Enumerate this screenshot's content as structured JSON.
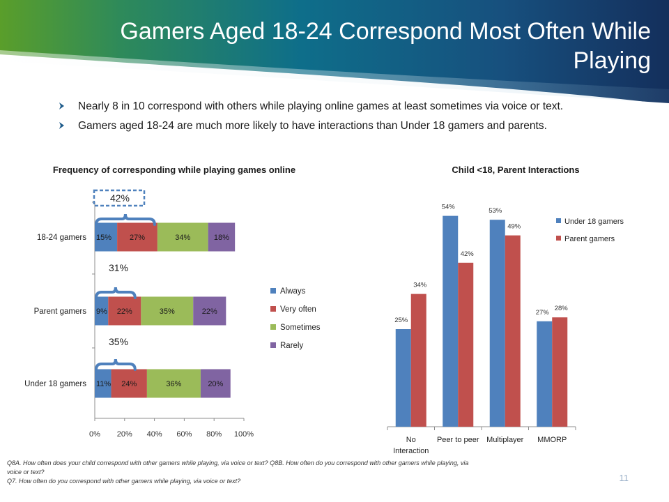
{
  "slide": {
    "title": "Gamers Aged 18-24 Correspond Most Often While Playing",
    "bullets": [
      "Nearly 8 in 10 correspond with others while playing online games at least sometimes via voice or text.",
      "Gamers aged 18-24 are much more likely to have interactions than Under 18 gamers and parents."
    ],
    "footnote": [
      "Q8A. How often does your child correspond with other gamers while playing, via voice or text? Q8B. How often do you correspond with other gamers while playing, via voice or text?",
      "Q7.  How often do you correspond with other gamers while playing, via voice or text?"
    ],
    "page_number": "11"
  },
  "colors": {
    "blue": "#4f81bd",
    "red": "#c0504d",
    "green": "#9bbb59",
    "purple": "#8064a2",
    "callout_blue": "#4f81bd"
  },
  "chart_data": [
    {
      "type": "bar",
      "orientation": "horizontal",
      "stacked": true,
      "title": "Frequency of corresponding while playing games online",
      "categories": [
        "18-24 gamers",
        "Parent gamers",
        "Under 18 gamers"
      ],
      "series": [
        {
          "name": "Always",
          "values": [
            15,
            9,
            11
          ],
          "labels": [
            "15%",
            "9%",
            "11%"
          ]
        },
        {
          "name": "Very often",
          "values": [
            27,
            22,
            24
          ],
          "labels": [
            "27%",
            "22%",
            "24%"
          ]
        },
        {
          "name": "Sometimes",
          "values": [
            34,
            35,
            36
          ],
          "labels": [
            "34%",
            "35%",
            "36%"
          ]
        },
        {
          "name": "Rarely",
          "values": [
            18,
            22,
            20
          ],
          "labels": [
            "18%",
            "22%",
            "20%"
          ]
        }
      ],
      "xlim": [
        0,
        100
      ],
      "xticks": [
        "0%",
        "20%",
        "40%",
        "60%",
        "80%",
        "100%"
      ],
      "legend": "right",
      "callouts": [
        "42%",
        "31%",
        "35%"
      ]
    },
    {
      "type": "bar",
      "title": "Child <18, Parent Interactions",
      "categories": [
        "No Interaction",
        "Peer to peer",
        "Multiplayer",
        "MMORP"
      ],
      "series": [
        {
          "name": "Under 18 gamers",
          "values": [
            25,
            54,
            53,
            27
          ],
          "labels": [
            "25%",
            "54%",
            "53%",
            "27%"
          ]
        },
        {
          "name": "Parent gamers",
          "values": [
            34,
            42,
            49,
            28
          ],
          "labels": [
            "34%",
            "42%",
            "49%",
            "28%"
          ]
        }
      ],
      "ylim": [
        0,
        60
      ],
      "legend": "top-right"
    }
  ]
}
